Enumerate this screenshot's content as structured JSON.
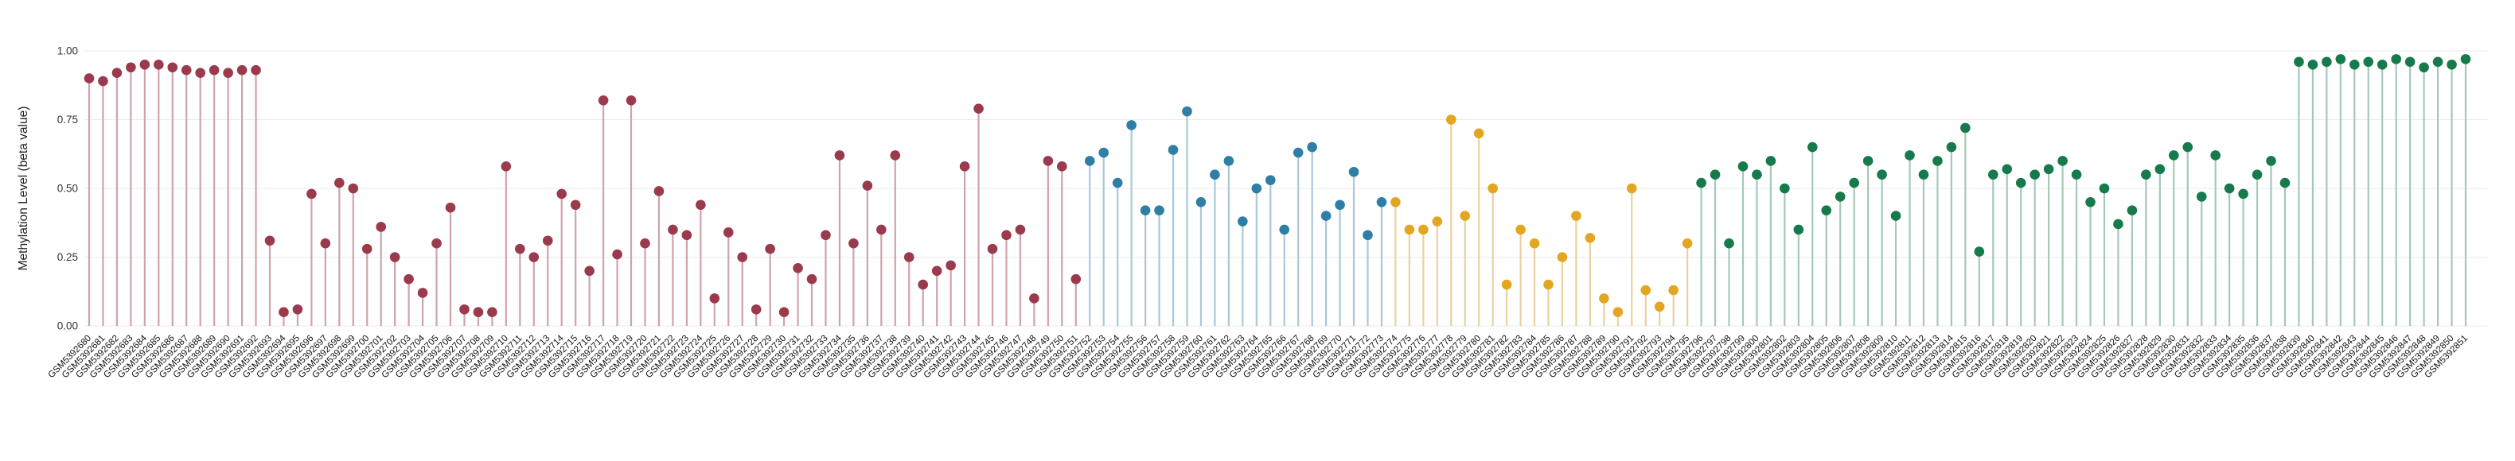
{
  "page": {
    "background": "#ffffff"
  },
  "chart_data": {
    "type": "scatter",
    "style": "lollipop",
    "title": "",
    "xlabel": "",
    "ylabel": "Methylation Level (beta value)",
    "ylim": [
      0,
      1
    ],
    "yticks": [
      0,
      0.25,
      0.5,
      0.75,
      1
    ],
    "ytick_labels": [
      "0.00",
      "0.25",
      "0.50",
      "0.75",
      "1.00"
    ],
    "grid": true,
    "legend": "none",
    "grid_color": "#ebebeb",
    "tick_text_color": "#333333",
    "label_text_color": "#111111",
    "groups": [
      {
        "name": "group-1-maroon",
        "point_color": "#9a3a4c",
        "stem_color": "#cfa3ab",
        "samples": [
          "GSM5392680",
          "GSM5392681",
          "GSM5392682",
          "GSM5392683",
          "GSM5392684",
          "GSM5392685",
          "GSM5392686",
          "GSM5392687",
          "GSM5392688",
          "GSM5392689",
          "GSM5392690",
          "GSM5392691",
          "GSM5392692",
          "GSM5392693",
          "GSM5392694",
          "GSM5392695",
          "GSM5392696",
          "GSM5392697",
          "GSM5392698",
          "GSM5392699",
          "GSM5392700",
          "GSM5392701",
          "GSM5392702",
          "GSM5392703",
          "GSM5392704",
          "GSM5392705",
          "GSM5392706",
          "GSM5392707",
          "GSM5392708",
          "GSM5392709",
          "GSM5392710",
          "GSM5392711",
          "GSM5392712",
          "GSM5392713",
          "GSM5392714",
          "GSM5392715",
          "GSM5392716",
          "GSM5392717",
          "GSM5392718",
          "GSM5392719",
          "GSM5392720",
          "GSM5392721",
          "GSM5392722",
          "GSM5392723",
          "GSM5392724",
          "GSM5392725",
          "GSM5392726",
          "GSM5392727",
          "GSM5392728",
          "GSM5392729",
          "GSM5392730",
          "GSM5392731",
          "GSM5392732",
          "GSM5392733",
          "GSM5392734",
          "GSM5392735",
          "GSM5392736",
          "GSM5392737",
          "GSM5392738",
          "GSM5392739",
          "GSM5392740",
          "GSM5392741",
          "GSM5392742",
          "GSM5392743",
          "GSM5392744",
          "GSM5392745",
          "GSM5392746",
          "GSM5392747",
          "GSM5392748",
          "GSM5392749",
          "GSM5392750",
          "GSM5392751"
        ],
        "values": [
          0.9,
          0.89,
          0.92,
          0.94,
          0.95,
          0.95,
          0.94,
          0.93,
          0.92,
          0.93,
          0.92,
          0.93,
          0.93,
          0.31,
          0.05,
          0.06,
          0.48,
          0.3,
          0.52,
          0.5,
          0.28,
          0.36,
          0.25,
          0.17,
          0.12,
          0.3,
          0.43,
          0.06,
          0.05,
          0.05,
          0.58,
          0.28,
          0.25,
          0.31,
          0.48,
          0.44,
          0.2,
          0.82,
          0.26,
          0.82,
          0.3,
          0.49,
          0.35,
          0.33,
          0.44,
          0.1,
          0.34,
          0.25,
          0.06,
          0.28,
          0.05,
          0.21,
          0.17,
          0.33,
          0.62,
          0.3,
          0.51,
          0.35,
          0.62,
          0.25,
          0.15,
          0.2,
          0.22,
          0.58,
          0.79,
          0.28,
          0.33,
          0.35,
          0.1,
          0.6,
          0.58,
          0.17
        ]
      },
      {
        "name": "group-2-blue",
        "point_color": "#2e7ea6",
        "stem_color": "#a9c8d9",
        "samples": [
          "GSM5392752",
          "GSM5392753",
          "GSM5392754",
          "GSM5392755",
          "GSM5392756",
          "GSM5392757",
          "GSM5392758",
          "GSM5392759",
          "GSM5392760",
          "GSM5392761",
          "GSM5392762",
          "GSM5392763",
          "GSM5392764",
          "GSM5392765",
          "GSM5392766",
          "GSM5392767",
          "GSM5392768",
          "GSM5392769",
          "GSM5392770",
          "GSM5392771",
          "GSM5392772",
          "GSM5392773"
        ],
        "values": [
          0.6,
          0.63,
          0.52,
          0.73,
          0.42,
          0.42,
          0.64,
          0.78,
          0.45,
          0.55,
          0.6,
          0.38,
          0.5,
          0.53,
          0.35,
          0.63,
          0.65,
          0.4,
          0.44,
          0.56,
          0.33,
          0.45
        ]
      },
      {
        "name": "group-3-orange",
        "point_color": "#e3a620",
        "stem_color": "#e9d1a0",
        "samples": [
          "GSM5392774",
          "GSM5392775",
          "GSM5392776",
          "GSM5392777",
          "GSM5392778",
          "GSM5392779",
          "GSM5392780",
          "GSM5392781",
          "GSM5392782",
          "GSM5392783",
          "GSM5392784",
          "GSM5392785",
          "GSM5392786",
          "GSM5392787",
          "GSM5392788",
          "GSM5392789",
          "GSM5392790",
          "GSM5392791",
          "GSM5392792",
          "GSM5392793",
          "GSM5392794",
          "GSM5392795"
        ],
        "values": [
          0.45,
          0.35,
          0.35,
          0.38,
          0.75,
          0.4,
          0.7,
          0.5,
          0.15,
          0.35,
          0.3,
          0.15,
          0.25,
          0.4,
          0.32,
          0.1,
          0.05,
          0.5,
          0.13,
          0.07,
          0.13,
          0.3
        ]
      },
      {
        "name": "group-4-green",
        "point_color": "#177a4d",
        "stem_color": "#a5c9b8",
        "samples": [
          "GSM5392796",
          "GSM5392797",
          "GSM5392798",
          "GSM5392799",
          "GSM5392800",
          "GSM5392801",
          "GSM5392802",
          "GSM5392803",
          "GSM5392804",
          "GSM5392805",
          "GSM5392806",
          "GSM5392807",
          "GSM5392808",
          "GSM5392809",
          "GSM5392810",
          "GSM5392811",
          "GSM5392812",
          "GSM5392813",
          "GSM5392814",
          "GSM5392815",
          "GSM5392816",
          "GSM5392817",
          "GSM5392818",
          "GSM5392819",
          "GSM5392820",
          "GSM5392821",
          "GSM5392822",
          "GSM5392823",
          "GSM5392824",
          "GSM5392825",
          "GSM5392826",
          "GSM5392827",
          "GSM5392828",
          "GSM5392829",
          "GSM5392830",
          "GSM5392831",
          "GSM5392832",
          "GSM5392833",
          "GSM5392834",
          "GSM5392835",
          "GSM5392836",
          "GSM5392837",
          "GSM5392838",
          "GSM5392839",
          "GSM5392840",
          "GSM5392841",
          "GSM5392842",
          "GSM5392843",
          "GSM5392844",
          "GSM5392845",
          "GSM5392846",
          "GSM5392847",
          "GSM5392848",
          "GSM5392849",
          "GSM5392850",
          "GSM5392851"
        ],
        "values": [
          0.52,
          0.55,
          0.3,
          0.58,
          0.55,
          0.6,
          0.5,
          0.35,
          0.65,
          0.42,
          0.47,
          0.52,
          0.6,
          0.55,
          0.4,
          0.62,
          0.55,
          0.6,
          0.65,
          0.72,
          0.27,
          0.55,
          0.57,
          0.52,
          0.55,
          0.57,
          0.6,
          0.55,
          0.45,
          0.5,
          0.37,
          0.42,
          0.55,
          0.57,
          0.62,
          0.65,
          0.47,
          0.62,
          0.5,
          0.48,
          0.55,
          0.6,
          0.52,
          0.96,
          0.95,
          0.96,
          0.97,
          0.95,
          0.96,
          0.95,
          0.97,
          0.96,
          0.94,
          0.96,
          0.95,
          0.97
        ]
      }
    ]
  }
}
